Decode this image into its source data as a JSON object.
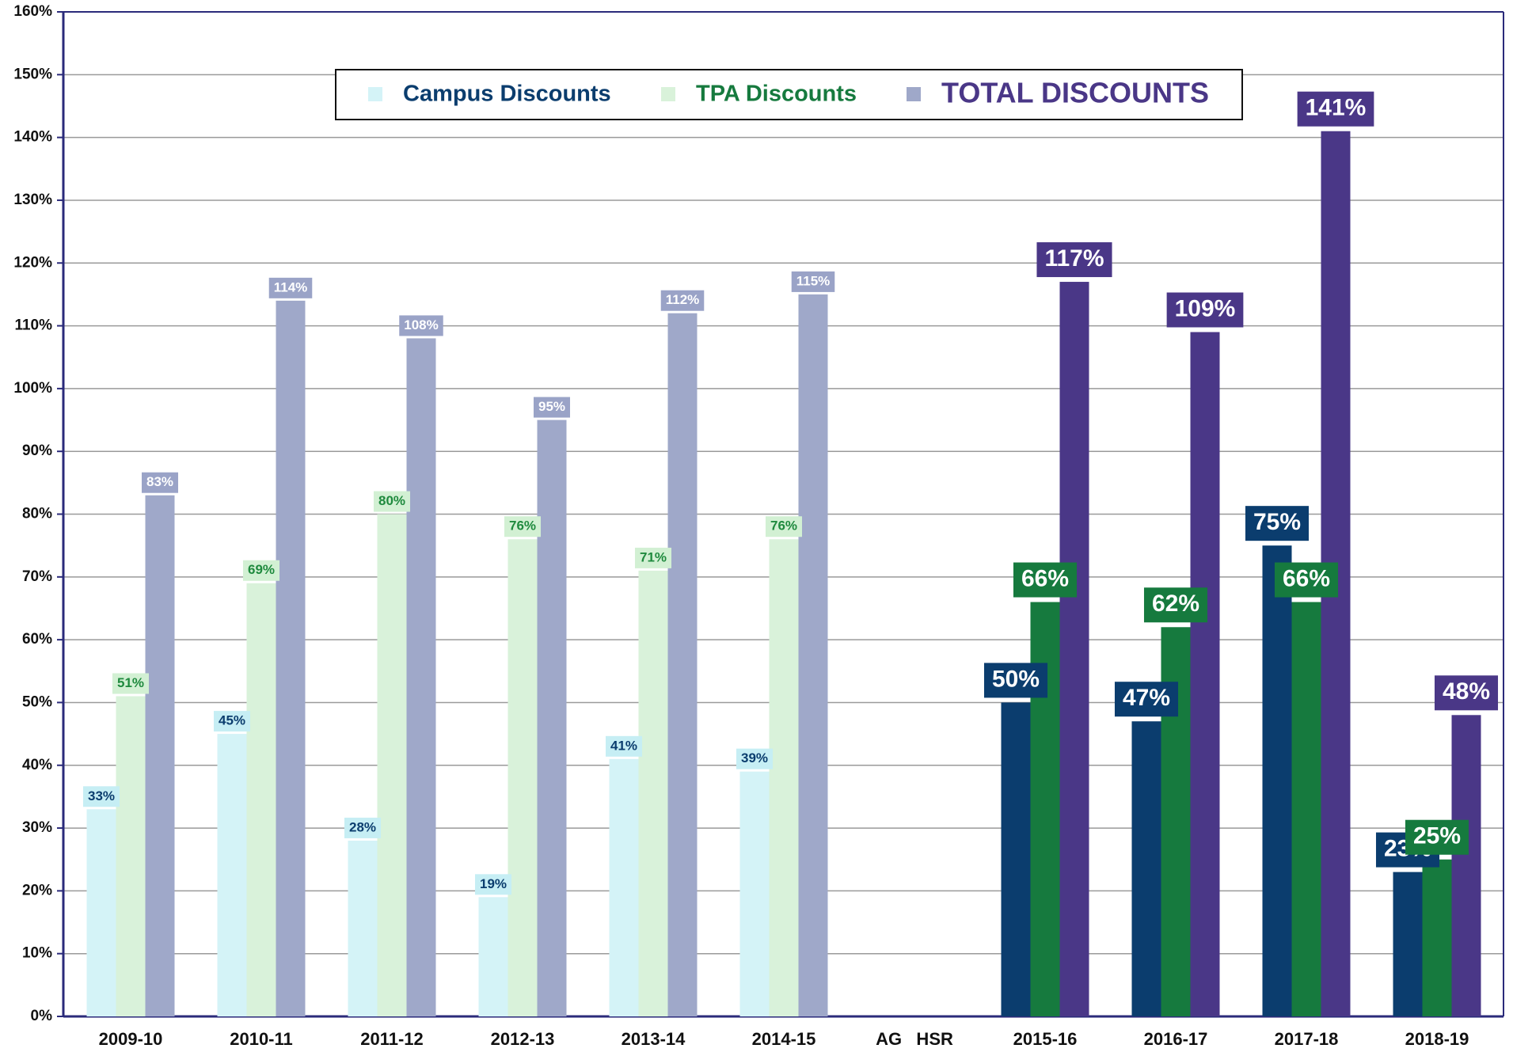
{
  "chart_data": {
    "type": "bar",
    "categories": [
      "2009-10",
      "2010-11",
      "2011-12",
      "2012-13",
      "2013-14",
      "2014-15",
      "AG   HSR",
      "2015-16",
      "2016-17",
      "2017-18",
      "2018-19"
    ],
    "series": [
      {
        "name": "Campus Discounts",
        "colors": [
          "#d4f3f7",
          "#d4f3f7",
          "#d4f3f7",
          "#d4f3f7",
          "#d4f3f7",
          "#d4f3f7",
          null,
          "#0b3d6e",
          "#0b3d6e",
          "#0b3d6e",
          "#0b3d6e"
        ],
        "values": [
          33,
          45,
          28,
          19,
          41,
          39,
          null,
          50,
          47,
          75,
          23
        ],
        "value_labels": [
          "33%",
          "45%",
          "28%",
          "19%",
          "41%",
          "39%",
          null,
          "50%",
          "47%",
          "75%",
          "23%"
        ]
      },
      {
        "name": "TPA Discounts",
        "colors": [
          "#d9f2da",
          "#d9f2da",
          "#d9f2da",
          "#d9f2da",
          "#d9f2da",
          "#d9f2da",
          null,
          "#167a3e",
          "#167a3e",
          "#167a3e",
          "#167a3e"
        ],
        "values": [
          51,
          69,
          80,
          76,
          71,
          76,
          null,
          66,
          62,
          66,
          25
        ],
        "value_labels": [
          "51%",
          "69%",
          "80%",
          "76%",
          "71%",
          "76%",
          null,
          "66%",
          "62%",
          "66%",
          "25%"
        ]
      },
      {
        "name": "TOTAL DISCOUNTS",
        "colors": [
          "#9fa8c9",
          "#9fa8c9",
          "#9fa8c9",
          "#9fa8c9",
          "#9fa8c9",
          "#9fa8c9",
          null,
          "#4a3787",
          "#4a3787",
          "#4a3787",
          "#4a3787"
        ],
        "values": [
          83,
          114,
          108,
          95,
          112,
          115,
          null,
          117,
          109,
          141,
          48
        ],
        "value_labels": [
          "83%",
          "114%",
          "108%",
          "95%",
          "112%",
          "115%",
          null,
          "117%",
          "109%",
          "141%",
          "48%"
        ]
      }
    ],
    "ylim": [
      0,
      160
    ],
    "yticks": [
      {
        "value": 0,
        "label": "0%"
      },
      {
        "value": 10,
        "label": "10%"
      },
      {
        "value": 20,
        "label": "20%"
      },
      {
        "value": 30,
        "label": "30%"
      },
      {
        "value": 40,
        "label": "40%"
      },
      {
        "value": 50,
        "label": "50%"
      },
      {
        "value": 60,
        "label": "60%"
      },
      {
        "value": 70,
        "label": "70%"
      },
      {
        "value": 80,
        "label": "80%"
      },
      {
        "value": 90,
        "label": "90%"
      },
      {
        "value": 100,
        "label": "100%"
      },
      {
        "value": 110,
        "label": "110%"
      },
      {
        "value": 120,
        "label": "120%"
      },
      {
        "value": 130,
        "label": "130%"
      },
      {
        "value": 140,
        "label": "140%"
      },
      {
        "value": 150,
        "label": "150%"
      },
      {
        "value": 160,
        "label": "160%"
      }
    ],
    "grid": true
  }
}
